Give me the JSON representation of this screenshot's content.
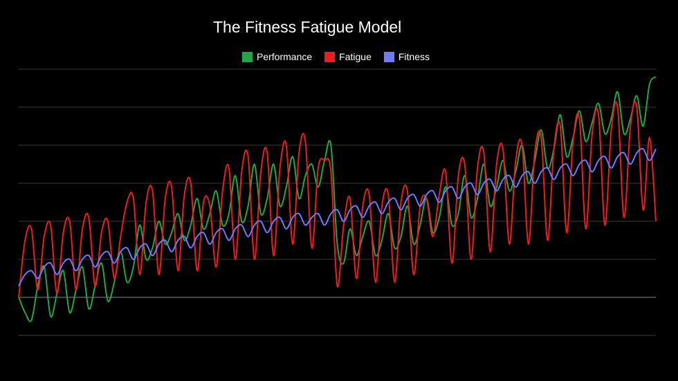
{
  "chart_data": {
    "type": "line",
    "title": "The Fitness Fatigue Model",
    "xlabel": "",
    "ylabel": "",
    "grid": true,
    "legend_position": "top-center",
    "x_range": [
      0,
      100
    ],
    "y_range": [
      -1,
      6
    ],
    "series": [
      {
        "name": "Performance",
        "color": "#22a745",
        "values": [
          [
            0,
            0
          ],
          [
            1,
            -0.4
          ],
          [
            2,
            -0.6
          ],
          [
            3,
            0.3
          ],
          [
            4,
            0.8
          ],
          [
            5,
            -0.5
          ],
          [
            6,
            0.1
          ],
          [
            7,
            0.7
          ],
          [
            8,
            -0.4
          ],
          [
            9,
            0.2
          ],
          [
            10,
            0.8
          ],
          [
            11,
            -0.3
          ],
          [
            12,
            0.3
          ],
          [
            13,
            0.9
          ],
          [
            14,
            -0.1
          ],
          [
            15,
            0.4
          ],
          [
            16,
            1.2
          ],
          [
            17,
            0.4
          ],
          [
            18,
            0.8
          ],
          [
            19,
            1.9
          ],
          [
            20,
            1.0
          ],
          [
            21,
            1.3
          ],
          [
            22,
            2.0
          ],
          [
            23,
            1.4
          ],
          [
            24,
            1.7
          ],
          [
            25,
            2.2
          ],
          [
            26,
            1.5
          ],
          [
            27,
            1.9
          ],
          [
            28,
            2.6
          ],
          [
            29,
            1.8
          ],
          [
            30,
            2.2
          ],
          [
            31,
            2.8
          ],
          [
            32,
            1.9
          ],
          [
            33,
            2.2
          ],
          [
            34,
            3.2
          ],
          [
            35,
            2.0
          ],
          [
            36,
            2.4
          ],
          [
            37,
            3.5
          ],
          [
            38,
            2.2
          ],
          [
            39,
            2.6
          ],
          [
            40,
            3.5
          ],
          [
            41,
            2.4
          ],
          [
            42,
            2.9
          ],
          [
            43,
            3.7
          ],
          [
            44,
            2.6
          ],
          [
            45,
            3.2
          ],
          [
            46,
            3.5
          ],
          [
            47,
            2.9
          ],
          [
            48,
            3.6
          ],
          [
            49,
            4.0
          ],
          [
            50,
            1.4
          ],
          [
            51,
            0.9
          ],
          [
            52,
            1.8
          ],
          [
            53,
            1.1
          ],
          [
            54,
            1.6
          ],
          [
            55,
            2.0
          ],
          [
            56,
            1.1
          ],
          [
            57,
            1.5
          ],
          [
            58,
            2.2
          ],
          [
            59,
            1.3
          ],
          [
            60,
            1.6
          ],
          [
            61,
            2.4
          ],
          [
            62,
            1.4
          ],
          [
            63,
            1.9
          ],
          [
            64,
            2.6
          ],
          [
            65,
            1.7
          ],
          [
            66,
            2.1
          ],
          [
            67,
            2.9
          ],
          [
            68,
            1.9
          ],
          [
            69,
            2.2
          ],
          [
            70,
            3.2
          ],
          [
            71,
            2.1
          ],
          [
            72,
            2.6
          ],
          [
            73,
            3.5
          ],
          [
            74,
            2.4
          ],
          [
            75,
            2.9
          ],
          [
            76,
            3.6
          ],
          [
            77,
            2.8
          ],
          [
            78,
            3.3
          ],
          [
            79,
            4.0
          ],
          [
            80,
            3.0
          ],
          [
            81,
            3.6
          ],
          [
            82,
            4.4
          ],
          [
            83,
            3.4
          ],
          [
            84,
            3.9
          ],
          [
            85,
            4.8
          ],
          [
            86,
            3.7
          ],
          [
            87,
            4.2
          ],
          [
            88,
            4.9
          ],
          [
            89,
            4.1
          ],
          [
            90,
            4.6
          ],
          [
            91,
            5.1
          ],
          [
            92,
            4.3
          ],
          [
            93,
            4.7
          ],
          [
            94,
            5.4
          ],
          [
            95,
            4.3
          ],
          [
            96,
            4.7
          ],
          [
            97,
            5.3
          ],
          [
            98,
            4.5
          ],
          [
            99,
            5.6
          ],
          [
            100,
            5.8
          ]
        ]
      },
      {
        "name": "Fatigue",
        "color": "#ee1c1c",
        "values": [
          [
            0,
            0
          ],
          [
            1,
            1.5
          ],
          [
            2,
            1.8
          ],
          [
            3,
            0.2
          ],
          [
            4,
            1.6
          ],
          [
            5,
            1.9
          ],
          [
            6,
            0.1
          ],
          [
            7,
            1.7
          ],
          [
            8,
            2.0
          ],
          [
            9,
            0.2
          ],
          [
            10,
            1.8
          ],
          [
            11,
            2.1
          ],
          [
            12,
            0.3
          ],
          [
            13,
            1.7
          ],
          [
            14,
            2.0
          ],
          [
            15,
            0.5
          ],
          [
            16,
            1.6
          ],
          [
            17,
            2.5
          ],
          [
            18,
            2.6
          ],
          [
            19,
            0.6
          ],
          [
            20,
            2.5
          ],
          [
            21,
            2.8
          ],
          [
            22,
            0.6
          ],
          [
            23,
            2.6
          ],
          [
            24,
            2.9
          ],
          [
            25,
            0.7
          ],
          [
            26,
            2.7
          ],
          [
            27,
            3.0
          ],
          [
            28,
            0.7
          ],
          [
            29,
            2.5
          ],
          [
            30,
            2.4
          ],
          [
            31,
            0.8
          ],
          [
            32,
            2.8
          ],
          [
            33,
            3.4
          ],
          [
            34,
            1.0
          ],
          [
            35,
            3.3
          ],
          [
            36,
            3.7
          ],
          [
            37,
            1.0
          ],
          [
            38,
            3.3
          ],
          [
            39,
            3.8
          ],
          [
            40,
            1.1
          ],
          [
            41,
            3.4
          ],
          [
            42,
            4.0
          ],
          [
            43,
            1.4
          ],
          [
            44,
            3.8
          ],
          [
            45,
            4.1
          ],
          [
            46,
            1.3
          ],
          [
            47,
            3.4
          ],
          [
            48,
            3.6
          ],
          [
            49,
            3.3
          ],
          [
            50,
            0.3
          ],
          [
            51,
            1.9
          ],
          [
            52,
            2.6
          ],
          [
            53,
            0.5
          ],
          [
            54,
            2.4
          ],
          [
            55,
            2.7
          ],
          [
            56,
            0.4
          ],
          [
            57,
            2.4
          ],
          [
            58,
            2.7
          ],
          [
            59,
            0.4
          ],
          [
            60,
            2.5
          ],
          [
            61,
            2.8
          ],
          [
            62,
            0.6
          ],
          [
            63,
            2.4
          ],
          [
            64,
            2.6
          ],
          [
            65,
            1.6
          ],
          [
            66,
            2.7
          ],
          [
            67,
            3.3
          ],
          [
            68,
            0.9
          ],
          [
            69,
            3.2
          ],
          [
            70,
            3.5
          ],
          [
            71,
            1.0
          ],
          [
            72,
            3.4
          ],
          [
            73,
            3.8
          ],
          [
            74,
            1.2
          ],
          [
            75,
            3.5
          ],
          [
            76,
            3.9
          ],
          [
            77,
            1.4
          ],
          [
            78,
            3.6
          ],
          [
            79,
            4.0
          ],
          [
            80,
            1.4
          ],
          [
            81,
            3.8
          ],
          [
            82,
            4.2
          ],
          [
            83,
            1.5
          ],
          [
            84,
            3.9
          ],
          [
            85,
            4.5
          ],
          [
            86,
            1.7
          ],
          [
            87,
            4.1
          ],
          [
            88,
            4.7
          ],
          [
            89,
            1.8
          ],
          [
            90,
            4.3
          ],
          [
            91,
            4.8
          ],
          [
            92,
            1.9
          ],
          [
            93,
            4.4
          ],
          [
            94,
            5.0
          ],
          [
            95,
            2.1
          ],
          [
            96,
            4.5
          ],
          [
            97,
            5.0
          ],
          [
            98,
            2.3
          ],
          [
            99,
            4.2
          ],
          [
            100,
            2.0
          ]
        ]
      },
      {
        "name": "Fitness",
        "color": "#6f7bff",
        "values": [
          [
            0,
            0.3
          ],
          [
            1,
            0.6
          ],
          [
            2,
            0.7
          ],
          [
            3,
            0.5
          ],
          [
            4,
            0.8
          ],
          [
            5,
            0.9
          ],
          [
            6,
            0.6
          ],
          [
            7,
            0.9
          ],
          [
            8,
            1.0
          ],
          [
            9,
            0.7
          ],
          [
            10,
            1.0
          ],
          [
            11,
            1.1
          ],
          [
            12,
            0.8
          ],
          [
            13,
            1.1
          ],
          [
            14,
            1.2
          ],
          [
            15,
            0.9
          ],
          [
            16,
            1.2
          ],
          [
            17,
            1.3
          ],
          [
            18,
            1.0
          ],
          [
            19,
            1.3
          ],
          [
            20,
            1.4
          ],
          [
            21,
            1.1
          ],
          [
            22,
            1.4
          ],
          [
            23,
            1.5
          ],
          [
            24,
            1.2
          ],
          [
            25,
            1.5
          ],
          [
            26,
            1.6
          ],
          [
            27,
            1.3
          ],
          [
            28,
            1.6
          ],
          [
            29,
            1.7
          ],
          [
            30,
            1.4
          ],
          [
            31,
            1.7
          ],
          [
            32,
            1.8
          ],
          [
            33,
            1.5
          ],
          [
            34,
            1.8
          ],
          [
            35,
            1.9
          ],
          [
            36,
            1.6
          ],
          [
            37,
            1.9
          ],
          [
            38,
            2.0
          ],
          [
            39,
            1.7
          ],
          [
            40,
            2.0
          ],
          [
            41,
            2.1
          ],
          [
            42,
            1.8
          ],
          [
            43,
            2.1
          ],
          [
            44,
            2.2
          ],
          [
            45,
            1.9
          ],
          [
            46,
            2.1
          ],
          [
            47,
            2.2
          ],
          [
            48,
            1.9
          ],
          [
            49,
            2.2
          ],
          [
            50,
            2.3
          ],
          [
            51,
            2.0
          ],
          [
            52,
            2.3
          ],
          [
            53,
            2.4
          ],
          [
            54,
            2.1
          ],
          [
            55,
            2.4
          ],
          [
            56,
            2.5
          ],
          [
            57,
            2.2
          ],
          [
            58,
            2.5
          ],
          [
            59,
            2.6
          ],
          [
            60,
            2.3
          ],
          [
            61,
            2.6
          ],
          [
            62,
            2.7
          ],
          [
            63,
            2.4
          ],
          [
            64,
            2.7
          ],
          [
            65,
            2.8
          ],
          [
            66,
            2.5
          ],
          [
            67,
            2.8
          ],
          [
            68,
            2.9
          ],
          [
            69,
            2.6
          ],
          [
            70,
            2.9
          ],
          [
            71,
            3.0
          ],
          [
            72,
            2.7
          ],
          [
            73,
            3.0
          ],
          [
            74,
            3.1
          ],
          [
            75,
            2.8
          ],
          [
            76,
            3.1
          ],
          [
            77,
            3.2
          ],
          [
            78,
            2.9
          ],
          [
            79,
            3.2
          ],
          [
            80,
            3.3
          ],
          [
            81,
            3.0
          ],
          [
            82,
            3.3
          ],
          [
            83,
            3.4
          ],
          [
            84,
            3.1
          ],
          [
            85,
            3.4
          ],
          [
            86,
            3.5
          ],
          [
            87,
            3.2
          ],
          [
            88,
            3.5
          ],
          [
            89,
            3.6
          ],
          [
            90,
            3.3
          ],
          [
            91,
            3.6
          ],
          [
            92,
            3.7
          ],
          [
            93,
            3.4
          ],
          [
            94,
            3.7
          ],
          [
            95,
            3.8
          ],
          [
            96,
            3.5
          ],
          [
            97,
            3.8
          ],
          [
            98,
            3.9
          ],
          [
            99,
            3.6
          ],
          [
            100,
            3.9
          ]
        ]
      }
    ]
  }
}
